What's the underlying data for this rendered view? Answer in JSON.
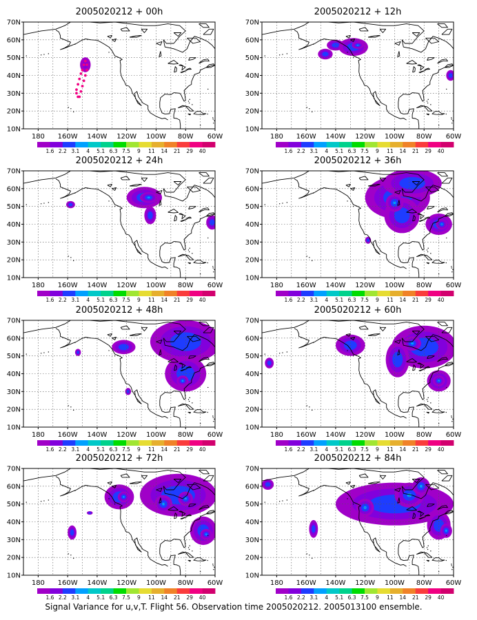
{
  "caption": "Signal Variance for u,v,T. Flight 56. Observation time 2005020212. 2005013100 ensemble.",
  "lat_ticks": [
    "70N",
    "60N",
    "50N",
    "40N",
    "30N",
    "20N",
    "10N"
  ],
  "lon_ticks": [
    "180",
    "160W",
    "140W",
    "120W",
    "100W",
    "80W",
    "60W"
  ],
  "colorbar": {
    "labels": [
      "1.6",
      "2.2",
      "3.1",
      "4",
      "5.1",
      "6.3",
      "7.5",
      "9",
      "11",
      "14",
      "21",
      "29",
      "40"
    ],
    "colors": [
      "#a000c8",
      "#8200dc",
      "#1e3cff",
      "#00a0ff",
      "#00c8c8",
      "#00d28c",
      "#00dc00",
      "#a0e632",
      "#e6dc32",
      "#e6af2d",
      "#f08228",
      "#fa3c3c",
      "#f00082",
      "#d2006e"
    ]
  },
  "map_extent": {
    "lon": [
      -190,
      -60
    ],
    "lat": [
      10,
      70
    ]
  },
  "panels": [
    {
      "title": "2005020212 + 00h",
      "blobs": [],
      "track": [
        [
          -153,
          28
        ],
        [
          -154,
          30
        ],
        [
          -154,
          32
        ],
        [
          -153,
          35
        ],
        [
          -152,
          38
        ],
        [
          -151,
          41
        ],
        [
          -150,
          43
        ],
        [
          -149,
          46
        ],
        [
          -148,
          48
        ],
        [
          -147,
          46
        ],
        [
          -147,
          43
        ],
        [
          -148,
          40
        ],
        [
          -149,
          37
        ],
        [
          -150,
          34
        ],
        [
          -151,
          31
        ],
        [
          -152,
          28
        ]
      ]
    },
    {
      "title": "2005020212 + 12h",
      "blobs": [
        [
          -140,
          57,
          6,
          3,
          2
        ],
        [
          -128,
          56,
          10,
          5,
          2
        ],
        [
          -125,
          57,
          4,
          2,
          3
        ],
        [
          -147,
          52,
          5,
          3,
          2
        ],
        [
          -62,
          40,
          3,
          3,
          2
        ]
      ]
    },
    {
      "title": "2005020212 + 24h",
      "blobs": [
        [
          -108,
          55,
          12,
          6,
          2
        ],
        [
          -105,
          55,
          6,
          3,
          3
        ],
        [
          -104,
          45,
          4,
          5,
          2
        ],
        [
          -62,
          41,
          4,
          4,
          2
        ],
        [
          -158,
          51,
          3,
          2,
          2
        ]
      ]
    },
    {
      "title": "2005020212 + 36h",
      "blobs": [
        [
          -98,
          55,
          22,
          12,
          2
        ],
        [
          -95,
          45,
          12,
          10,
          2
        ],
        [
          -100,
          52,
          6,
          5,
          3
        ],
        [
          -70,
          40,
          9,
          6,
          2
        ],
        [
          -68,
          40,
          4,
          3,
          3
        ],
        [
          -88,
          63,
          20,
          8,
          2
        ],
        [
          -118,
          31,
          2,
          2,
          2
        ]
      ]
    },
    {
      "title": "2005020212 + 48h",
      "blobs": [
        [
          -80,
          58,
          24,
          12,
          2
        ],
        [
          -80,
          40,
          14,
          10,
          2
        ],
        [
          -82,
          36,
          4,
          3,
          3
        ],
        [
          -122,
          55,
          8,
          4,
          2
        ],
        [
          -153,
          52,
          2,
          2,
          2
        ],
        [
          -119,
          30,
          2,
          2,
          2
        ]
      ]
    },
    {
      "title": "2005020212 + 60h",
      "blobs": [
        [
          -80,
          55,
          22,
          12,
          2
        ],
        [
          -88,
          57,
          6,
          4,
          3
        ],
        [
          -70,
          36,
          8,
          6,
          2
        ],
        [
          -70,
          36,
          4,
          3,
          3
        ],
        [
          -130,
          56,
          10,
          6,
          2
        ],
        [
          -185,
          46,
          3,
          3,
          2
        ],
        [
          -98,
          48,
          8,
          10,
          2
        ]
      ]
    },
    {
      "title": "2005020212 + 72h",
      "blobs": [
        [
          -85,
          55,
          26,
          12,
          2
        ],
        [
          -95,
          50,
          6,
          5,
          3
        ],
        [
          -80,
          53,
          5,
          4,
          3
        ],
        [
          -68,
          35,
          9,
          8,
          2
        ],
        [
          -66,
          33,
          4,
          3,
          4
        ],
        [
          -125,
          54,
          10,
          7,
          2
        ],
        [
          -122,
          54,
          4,
          3,
          3
        ],
        [
          -157,
          34,
          3,
          4,
          2
        ],
        [
          -145,
          45,
          2,
          1,
          2
        ]
      ]
    },
    {
      "title": "2005020212 + 84h",
      "blobs": [
        [
          -100,
          50,
          40,
          12,
          2
        ],
        [
          -90,
          55,
          10,
          7,
          3
        ],
        [
          -82,
          60,
          6,
          5,
          4
        ],
        [
          -70,
          38,
          8,
          8,
          2
        ],
        [
          -65,
          35,
          4,
          4,
          4
        ],
        [
          -155,
          36,
          3,
          5,
          2
        ],
        [
          -120,
          48,
          6,
          5,
          3
        ],
        [
          -186,
          61,
          4,
          3,
          2
        ]
      ]
    }
  ]
}
